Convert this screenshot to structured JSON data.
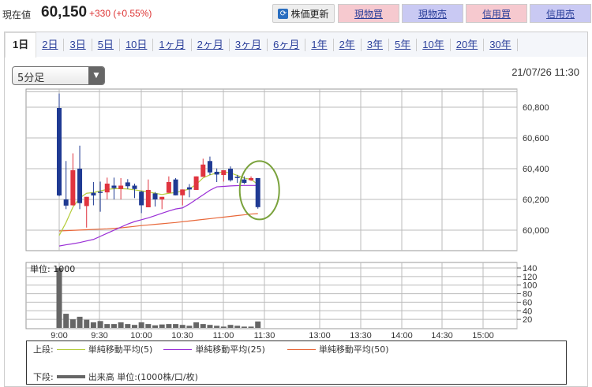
{
  "header": {
    "label": "現在値",
    "price": "60,150",
    "change": "+330 (+0.55%)",
    "refresh": "株価更新",
    "buttons": [
      "現物買",
      "現物売",
      "信用買",
      "信用売"
    ]
  },
  "tabs": [
    "1日",
    "2日",
    "3日",
    "5日",
    "10日",
    "1ヶ月",
    "2ヶ月",
    "3ヶ月",
    "6ヶ月",
    "1年",
    "2年",
    "3年",
    "5年",
    "10年",
    "20年",
    "30年"
  ],
  "interval_select": "5分足",
  "datetime": "21/07/26 11:30",
  "colors": {
    "up": "#e0343f",
    "down": "#1f3a93",
    "ma5": "#b5cc3c",
    "ma25": "#9a2fd6",
    "ma50": "#e8683a",
    "volume": "#666666",
    "highlight": "#7aa23c"
  },
  "chart_data": {
    "type": "candlestick",
    "interval_minutes": 5,
    "ylim": [
      59867,
      60918
    ],
    "yticks": [
      60000,
      60200,
      60400,
      60600,
      60800
    ],
    "ytick_labels": [
      "60,000",
      "60,200",
      "60,400",
      "60,600",
      "60,800"
    ],
    "xticks": [
      "9:00",
      "9:30",
      "10:00",
      "10:30",
      "11:00",
      "11:30",
      "13:00",
      "13:30",
      "14:00",
      "14:30",
      "15:00"
    ],
    "candles": [
      [
        60795,
        60889,
        60220,
        60226
      ],
      [
        60200,
        60450,
        60137,
        60160
      ],
      [
        60162,
        60500,
        60160,
        60390
      ],
      [
        60400,
        60550,
        60137,
        60176
      ],
      [
        60157,
        60217,
        60017,
        60217
      ],
      [
        60243,
        60313,
        60162,
        60226
      ],
      [
        60250,
        60316,
        60120,
        60245
      ],
      [
        60246,
        60342,
        60200,
        60303
      ],
      [
        60290,
        60342,
        60200,
        60274
      ],
      [
        60268,
        60339,
        60200,
        60290
      ],
      [
        60311,
        60332,
        60268,
        60286
      ],
      [
        60290,
        60303,
        60209,
        60268
      ],
      [
        60251,
        60256,
        60111,
        60162
      ],
      [
        60149,
        60330,
        60149,
        60262
      ],
      [
        60239,
        60248,
        60154,
        60200
      ],
      [
        60200,
        60217,
        60137,
        60217
      ],
      [
        60243,
        60350,
        60243,
        60313
      ],
      [
        60330,
        60339,
        60227,
        60227
      ],
      [
        60227,
        60265,
        60162,
        60265
      ],
      [
        60279,
        60300,
        60214,
        60265
      ],
      [
        60262,
        60350,
        60262,
        60350
      ],
      [
        60347,
        60465,
        60347,
        60427
      ],
      [
        60450,
        60479,
        60359,
        60376
      ],
      [
        60380,
        60402,
        60313,
        60362
      ],
      [
        60359,
        60390,
        60316,
        60390
      ],
      [
        60400,
        60415,
        60316,
        60325
      ],
      [
        60347,
        60360,
        60308,
        60345
      ],
      [
        60330,
        60350,
        60300,
        60308
      ],
      [
        60325,
        60350,
        60320,
        60339
      ],
      [
        60339,
        60339,
        60140,
        60150
      ]
    ],
    "ma5": [
      59966,
      60050,
      60150,
      60210,
      60240,
      60245,
      60256,
      60265,
      60270,
      60270,
      60268,
      60262,
      60256,
      60250,
      60240,
      60232,
      60240,
      60245,
      60256,
      60268,
      60298,
      60340,
      60360,
      60372,
      60380,
      60372,
      60356,
      60339,
      60330,
      60298
    ],
    "ma25": [
      59897,
      59905,
      59912,
      59920,
      59930,
      59940,
      59960,
      59980,
      60000,
      60020,
      60040,
      60056,
      60068,
      60080,
      60095,
      60110,
      60125,
      60138,
      60145,
      60170,
      60200,
      60230,
      60260,
      60282,
      60285,
      60288,
      60290,
      60291,
      60291,
      60291
    ],
    "ma50": [
      59995,
      59997,
      59999,
      60001,
      60003,
      60005,
      60007,
      60009,
      60012,
      60015,
      60020,
      60025,
      60030,
      60034,
      60038,
      60042,
      60046,
      60050,
      60055,
      60060,
      60065,
      60070,
      60075,
      60080,
      60085,
      60090,
      60095,
      60100,
      60105,
      60108
    ],
    "volume_unit_label": "単位: 1000",
    "volume_ylim": [
      0,
      140
    ],
    "volume_yticks": [
      20,
      40,
      60,
      80,
      100,
      120,
      140
    ],
    "volume": [
      140,
      33,
      20,
      26,
      19,
      13,
      16,
      9,
      9,
      13,
      9,
      7,
      13,
      9,
      6,
      8,
      9,
      9,
      7,
      5,
      13,
      9,
      7,
      5,
      3,
      7,
      5,
      3,
      3,
      15
    ]
  },
  "legend": {
    "upper": "上段:",
    "ma5": "単純移動平均(5)",
    "ma25": "単純移動平均(25)",
    "ma50": "単純移動平均(50)",
    "lower": "下段:",
    "volume": "出来高 単位:(1000株/口/枚)"
  }
}
